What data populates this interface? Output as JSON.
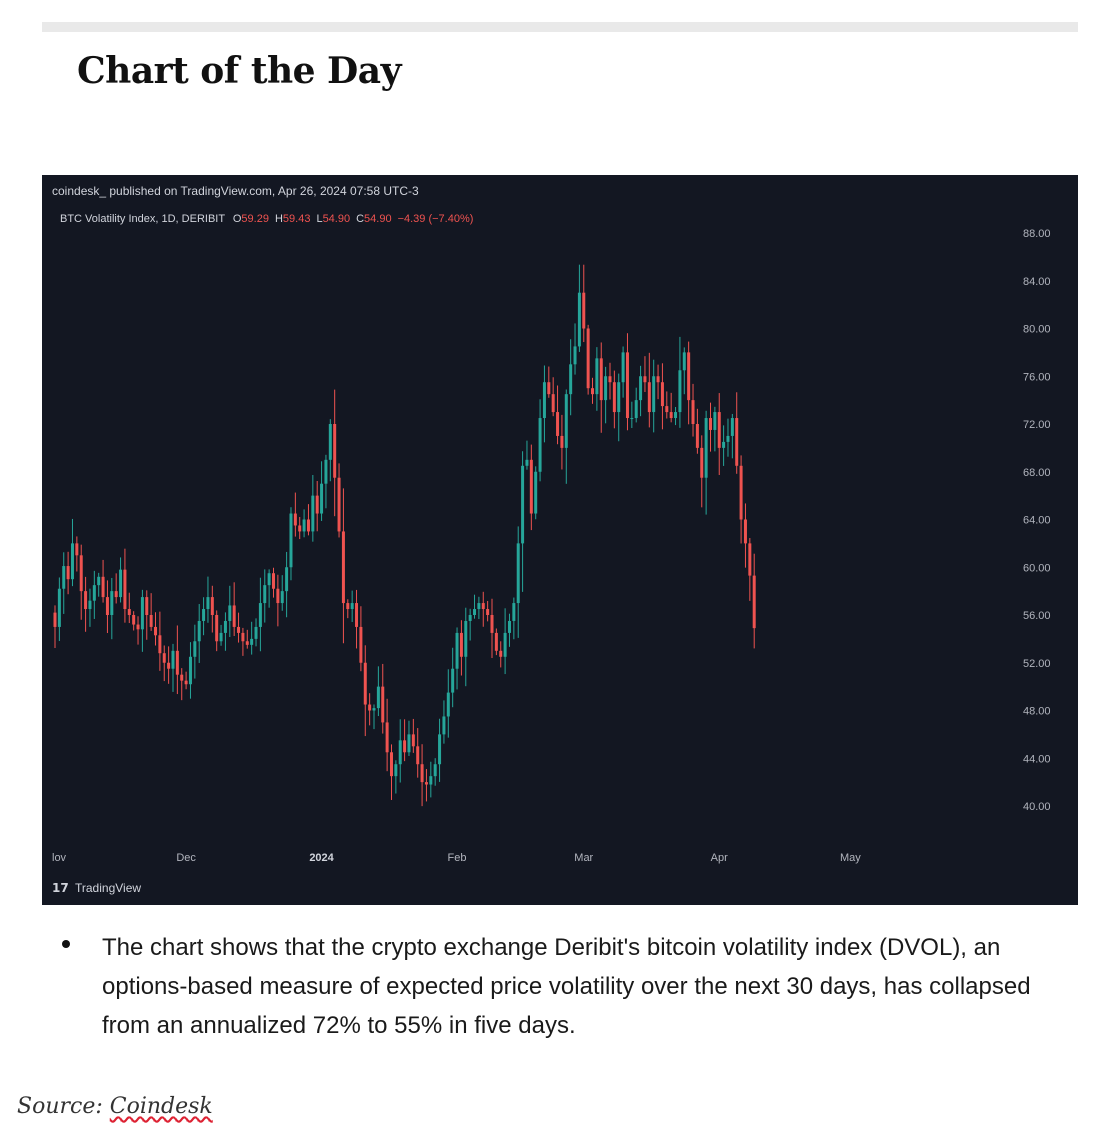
{
  "heading": "Chart of the Day",
  "chart_header": "coindesk_ published on TradingView.com, Apr 26, 2024 07:58 UTC-3",
  "legend": {
    "name": "BTC Volatility Index, 1D, DERIBIT",
    "o_label": "O",
    "o_value": "59.29",
    "h_label": "H",
    "h_value": "59.43",
    "l_label": "L",
    "l_value": "54.90",
    "c_label": "C",
    "c_value": "54.90",
    "change": "−4.39 (−7.40%)"
  },
  "branding": "TradingView",
  "bullet_text": "The chart shows that the crypto exchange Deribit's bitcoin volatility index (DVOL), an options-based measure of expected price volatility over the next 30 days, has collapsed from an annualized 72% to 55% in five days.",
  "source_prefix": "Source: ",
  "source_link": "Coindesk",
  "colors": {
    "up": "#26a69a",
    "down": "#ef5350",
    "background": "#131722",
    "text": "#b2b5be"
  },
  "chart_data": {
    "type": "candlestick",
    "ylim": [
      38,
      90
    ],
    "y_ticks": [
      "88.00",
      "84.00",
      "80.00",
      "76.00",
      "72.00",
      "68.00",
      "64.00",
      "60.00",
      "56.00",
      "52.00",
      "48.00",
      "44.00",
      "40.00"
    ],
    "x_ticks": [
      {
        "label": "lov",
        "day": 0,
        "bold": false
      },
      {
        "label": "Dec",
        "day": 30,
        "bold": false
      },
      {
        "label": "2024",
        "day": 61,
        "bold": true
      },
      {
        "label": "Feb",
        "day": 92,
        "bold": false
      },
      {
        "label": "Mar",
        "day": 121,
        "bold": false
      },
      {
        "label": "Apr",
        "day": 152,
        "bold": false
      },
      {
        "label": "May",
        "day": 182,
        "bold": false
      }
    ],
    "close": [
      55.0,
      58.2,
      60.1,
      59.0,
      62.0,
      61.0,
      58.0,
      56.5,
      57.2,
      58.5,
      59.2,
      57.5,
      56.0,
      58.0,
      57.5,
      59.8,
      56.5,
      56.0,
      55.2,
      54.8,
      57.5,
      56.0,
      55.0,
      54.3,
      52.8,
      52.0,
      51.5,
      53.0,
      51.0,
      50.5,
      50.2,
      52.5,
      53.8,
      55.5,
      56.5,
      57.5,
      56.0,
      53.8,
      54.5,
      55.5,
      56.8,
      55.0,
      54.5,
      53.8,
      53.5,
      54.0,
      55.0,
      57.0,
      58.5,
      59.5,
      58.2,
      57.0,
      58.0,
      60.0,
      64.5,
      63.5,
      63.0,
      64.0,
      63.0,
      66.0,
      64.5,
      67.0,
      69.0,
      72.0,
      67.5,
      63.0,
      57.0,
      56.5,
      57.0,
      55.0,
      52.0,
      48.5,
      48.0,
      48.2,
      50.0,
      47.0,
      44.5,
      42.5,
      43.5,
      45.5,
      44.5,
      46.0,
      45.0,
      43.5,
      42.0,
      41.8,
      42.5,
      43.5,
      46.0,
      47.5,
      49.5,
      51.5,
      54.5,
      52.5,
      55.5,
      56.0,
      56.5,
      57.0,
      56.5,
      56.0,
      54.5,
      53.0,
      52.5,
      54.5,
      55.5,
      57.0,
      62.0,
      68.5,
      69.0,
      64.5,
      68.0,
      72.5,
      75.5,
      74.5,
      73.0,
      71.0,
      70.0,
      74.5,
      77.0,
      78.5,
      83.0,
      80.0,
      75.0,
      74.5,
      77.5,
      74.0,
      76.0,
      75.5,
      73.0,
      75.5,
      78.0,
      72.5,
      72.5,
      74.0,
      76.0,
      75.5,
      73.0,
      76.0,
      75.5,
      73.5,
      73.0,
      72.5,
      73.0,
      76.5,
      78.0,
      74.0,
      72.0,
      70.0,
      67.5,
      72.5,
      71.5,
      73.0,
      70.0,
      70.5,
      71.0,
      72.5,
      68.5,
      64.0,
      62.0,
      59.3,
      54.9
    ],
    "series_name": "BTC Volatility Index, 1D, DERIBIT"
  }
}
